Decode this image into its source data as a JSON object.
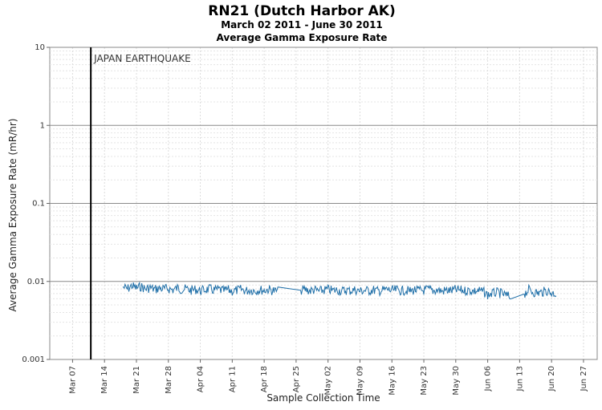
{
  "chart_data": {
    "type": "line",
    "title": "RN21 (Dutch Harbor AK)",
    "subtitle": "March 02 2011 - June 30 2011",
    "subtitle2": "Average Gamma Exposure Rate",
    "xlabel": "Sample Collection Time",
    "ylabel": "Average Gamma Exposure Rate (mR/hr)",
    "y_scale": "log",
    "ylim": [
      0.001,
      10
    ],
    "y_ticks": [
      {
        "value": 0.001,
        "label": "0.001"
      },
      {
        "value": 0.01,
        "label": "0.01"
      },
      {
        "value": 0.1,
        "label": "0.1"
      },
      {
        "value": 1,
        "label": "1"
      },
      {
        "value": 10,
        "label": "10"
      }
    ],
    "xlim": [
      "2011-03-02",
      "2011-06-30"
    ],
    "x_ticks": [
      {
        "date": "2011-03-07",
        "label": "Mar 07"
      },
      {
        "date": "2011-03-14",
        "label": "Mar 14"
      },
      {
        "date": "2011-03-21",
        "label": "Mar 21"
      },
      {
        "date": "2011-03-28",
        "label": "Mar 28"
      },
      {
        "date": "2011-04-04",
        "label": "Apr 04"
      },
      {
        "date": "2011-04-11",
        "label": "Apr 11"
      },
      {
        "date": "2011-04-18",
        "label": "Apr 18"
      },
      {
        "date": "2011-04-25",
        "label": "Apr 25"
      },
      {
        "date": "2011-05-02",
        "label": "May 02"
      },
      {
        "date": "2011-05-09",
        "label": "May 09"
      },
      {
        "date": "2011-05-16",
        "label": "May 16"
      },
      {
        "date": "2011-05-23",
        "label": "May 23"
      },
      {
        "date": "2011-05-30",
        "label": "May 30"
      },
      {
        "date": "2011-06-06",
        "label": "Jun 06"
      },
      {
        "date": "2011-06-13",
        "label": "Jun 13"
      },
      {
        "date": "2011-06-20",
        "label": "Jun 20"
      },
      {
        "date": "2011-06-27",
        "label": "Jun 27"
      }
    ],
    "grid": true,
    "annotations": [
      {
        "type": "vline",
        "date": "2011-03-11",
        "label": "JAPAN EARTHQUAKE",
        "color": "#000000"
      }
    ],
    "series": [
      {
        "color": "#1f6fa8",
        "points": [
          [
            "2011-03-18",
            0.0085
          ],
          [
            "2011-03-19",
            0.008
          ],
          [
            "2011-03-20",
            0.0088
          ],
          [
            "2011-03-21",
            0.0082
          ],
          [
            "2011-03-22",
            0.0086
          ],
          [
            "2011-03-23",
            0.008
          ],
          [
            "2011-03-24",
            0.0083
          ],
          [
            "2011-03-25",
            0.0079
          ],
          [
            "2011-03-26",
            0.0082
          ],
          [
            "2011-03-27",
            0.008
          ],
          [
            "2011-03-28",
            0.0081
          ],
          [
            "2011-03-29",
            0.0078
          ],
          [
            "2011-03-30",
            0.0082
          ],
          [
            "2011-03-31",
            0.0079
          ],
          [
            "2011-04-01",
            0.008
          ],
          [
            "2011-04-02",
            0.0077
          ],
          [
            "2011-04-03",
            0.0079
          ],
          [
            "2011-04-04",
            0.0076
          ],
          [
            "2011-04-05",
            0.0078
          ],
          [
            "2011-04-06",
            0.008
          ],
          [
            "2011-04-07",
            0.0077
          ],
          [
            "2011-04-08",
            0.0079
          ],
          [
            "2011-04-09",
            0.0076
          ],
          [
            "2011-04-10",
            0.0078
          ],
          [
            "2011-04-11",
            0.0075
          ],
          [
            "2011-04-12",
            0.0077
          ],
          [
            "2011-04-13",
            0.0079
          ],
          [
            "2011-04-14",
            0.0076
          ],
          [
            "2011-04-15",
            0.0078
          ],
          [
            "2011-04-16",
            0.0076
          ],
          [
            "2011-04-17",
            0.0078
          ],
          [
            "2011-04-18",
            0.0077
          ],
          [
            "2011-04-19",
            0.0079
          ],
          [
            "2011-04-20",
            0.0076
          ],
          [
            "2011-04-21",
            0.0074
          ],
          [
            "2011-04-26",
            0.0077
          ],
          [
            "2011-04-27",
            0.0079
          ],
          [
            "2011-04-28",
            0.0076
          ],
          [
            "2011-04-29",
            0.0078
          ],
          [
            "2011-04-30",
            0.0075
          ],
          [
            "2011-05-01",
            0.0077
          ],
          [
            "2011-05-02",
            0.0079
          ],
          [
            "2011-05-03",
            0.0076
          ],
          [
            "2011-05-04",
            0.0078
          ],
          [
            "2011-05-05",
            0.0075
          ],
          [
            "2011-05-06",
            0.0077
          ],
          [
            "2011-05-07",
            0.0076
          ],
          [
            "2011-05-08",
            0.0078
          ],
          [
            "2011-05-09",
            0.0075
          ],
          [
            "2011-05-10",
            0.0077
          ],
          [
            "2011-05-11",
            0.0076
          ],
          [
            "2011-05-12",
            0.0078
          ],
          [
            "2011-05-13",
            0.0075
          ],
          [
            "2011-05-14",
            0.0077
          ],
          [
            "2011-05-15",
            0.0079
          ],
          [
            "2011-05-16",
            0.0076
          ],
          [
            "2011-05-17",
            0.0078
          ],
          [
            "2011-05-18",
            0.0076
          ],
          [
            "2011-05-19",
            0.0077
          ],
          [
            "2011-05-20",
            0.0075
          ],
          [
            "2011-05-21",
            0.0078
          ],
          [
            "2011-05-22",
            0.0076
          ],
          [
            "2011-05-23",
            0.0077
          ],
          [
            "2011-05-24",
            0.0079
          ],
          [
            "2011-05-25",
            0.0076
          ],
          [
            "2011-05-26",
            0.0078
          ],
          [
            "2011-05-27",
            0.0075
          ],
          [
            "2011-05-28",
            0.0077
          ],
          [
            "2011-05-29",
            0.0076
          ],
          [
            "2011-05-30",
            0.0078
          ],
          [
            "2011-05-31",
            0.0077
          ],
          [
            "2011-06-01",
            0.0076
          ],
          [
            "2011-06-02",
            0.0077
          ],
          [
            "2011-06-03",
            0.0075
          ],
          [
            "2011-06-04",
            0.0076
          ],
          [
            "2011-06-05",
            0.0074
          ],
          [
            "2011-06-06",
            0.0067
          ],
          [
            "2011-06-07",
            0.007
          ],
          [
            "2011-06-08",
            0.0072
          ],
          [
            "2011-06-09",
            0.007
          ],
          [
            "2011-06-10",
            0.0066
          ],
          [
            "2011-06-11",
            0.0063
          ],
          [
            "2011-06-14",
            0.0069
          ],
          [
            "2011-06-15",
            0.0078
          ],
          [
            "2011-06-16",
            0.0073
          ],
          [
            "2011-06-17",
            0.0071
          ],
          [
            "2011-06-18",
            0.0073
          ],
          [
            "2011-06-19",
            0.0076
          ],
          [
            "2011-06-20",
            0.0071
          ],
          [
            "2011-06-21",
            0.007
          ]
        ]
      }
    ]
  }
}
